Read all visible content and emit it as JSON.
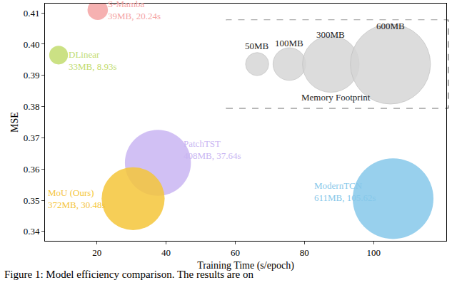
{
  "chart_data": {
    "type": "scatter",
    "marker": "circle",
    "x_label": "Training Time (s/epoch)",
    "y_label": "MSE",
    "xlim": [
      5,
      121
    ],
    "xticks": [
      20,
      40,
      60,
      80,
      100
    ],
    "ylim": [
      0.337,
      0.413
    ],
    "yticks": [
      0.34,
      0.35,
      0.36,
      0.37,
      0.38,
      0.39,
      {
        "value": 0.4,
        "label": "0.40"
      },
      0.41
    ],
    "grid": false,
    "data_labels": true,
    "series": [
      {
        "name": "S-Mamba",
        "color": "#f4a3a3",
        "x": [
          20.24
        ],
        "values": [
          0.411
        ],
        "sizes": [
          39
        ],
        "value_labels": [
          "39MB, 20.24s"
        ]
      },
      {
        "name": "DLinear",
        "color": "#c2dc6e",
        "x": [
          8.93
        ],
        "values": [
          0.3965
        ],
        "sizes": [
          33
        ],
        "value_labels": [
          "33MB, 8.93s"
        ]
      },
      {
        "name": "PatchTST",
        "color": "#c9b5f2",
        "x": [
          37.64
        ],
        "values": [
          0.362
        ],
        "sizes": [
          408
        ],
        "value_labels": [
          "408MB, 37.64s"
        ]
      },
      {
        "name": "MoU (Ours)",
        "color": "#f5c53a",
        "x": [
          30.48
        ],
        "values": [
          0.3505
        ],
        "sizes": [
          372
        ],
        "value_labels": [
          "372MB, 30.48s"
        ]
      },
      {
        "name": "ModernTCN",
        "color": "#86c8ea",
        "x": [
          105.62
        ],
        "values": [
          0.3505
        ],
        "sizes": [
          611
        ],
        "value_labels": [
          "611MB, 105.62s"
        ]
      }
    ],
    "size_legend": {
      "title": "Memory Footprint",
      "values": [
        50,
        100,
        300,
        600
      ],
      "labels": [
        "50MB",
        "100MB",
        "300MB",
        "600MB"
      ]
    },
    "caption": "Figure 1: Model efficiency comparison. The results are on"
  }
}
